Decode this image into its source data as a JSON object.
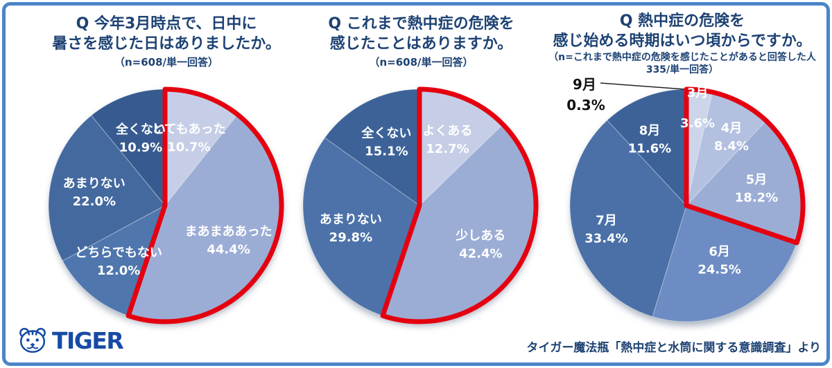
{
  "chart_data": [
    {
      "type": "pie",
      "title_lines": [
        "Q 今年3月時点で、日中に",
        "暑さを感じた日はありましたか。"
      ],
      "note_lines": [
        "（n=608/単一回答）"
      ],
      "categories": [
        "とてもあった",
        "まあまああった",
        "どちらでもない",
        "あまりない",
        "全くない"
      ],
      "values": [
        10.7,
        44.4,
        12.0,
        22.0,
        10.9
      ],
      "colors": [
        "#c5cee6",
        "#9cadd5",
        "#4f76ad",
        "#44699f",
        "#375b90"
      ],
      "highlighted_slices": [
        0,
        1
      ],
      "highlight_color": "#e5000f",
      "start_angle_deg": 0,
      "direction": "clockwise",
      "label_style": "inside-white-category-and-percent"
    },
    {
      "type": "pie",
      "title_lines": [
        "Q これまで熱中症の危険を",
        "感じたことはありますか。"
      ],
      "note_lines": [
        "（n=608/単一回答）"
      ],
      "categories": [
        "よくある",
        "少しある",
        "あまりない",
        "全くない"
      ],
      "values": [
        12.7,
        42.4,
        29.8,
        15.1
      ],
      "colors": [
        "#c5cee6",
        "#9cadd5",
        "#4c72a9",
        "#3c6298"
      ],
      "highlighted_slices": [
        0,
        1
      ],
      "highlight_color": "#e5000f",
      "start_angle_deg": 0,
      "direction": "clockwise",
      "label_style": "inside-white-category-and-percent"
    },
    {
      "type": "pie",
      "title_lines": [
        "Q 熱中症の危険を",
        "感じ始める時期はいつ頃からですか。"
      ],
      "note_lines": [
        "（n=これまで熱中症の危険を感じたことがあると回答した人",
        "335/単一回答）"
      ],
      "categories": [
        "3月",
        "4月",
        "5月",
        "6月",
        "7月",
        "8月",
        "9月"
      ],
      "values": [
        3.6,
        8.4,
        18.2,
        24.5,
        33.4,
        11.6,
        0.3
      ],
      "colors": [
        "#cdd5ea",
        "#b3c0e0",
        "#9cadd5",
        "#6d8cc3",
        "#4a70a7",
        "#3c6298",
        "#dfe3f0"
      ],
      "highlighted_slices": [
        0,
        1,
        2
      ],
      "highlight_color": "#e5000f",
      "start_angle_deg": 0,
      "direction": "clockwise",
      "label_style": "inside-white-category-and-percent",
      "external_label_slice": 6
    }
  ],
  "footer": {
    "logo_text": "TIGER",
    "source": "タイガー魔法瓶「熱中症と水筒に関する意識調査」より"
  }
}
